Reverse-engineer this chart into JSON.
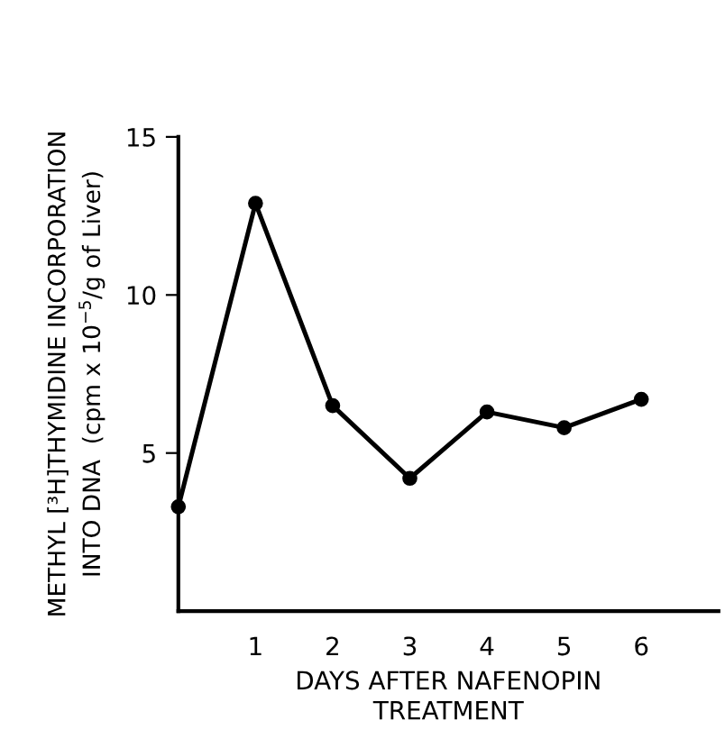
{
  "chart_data": {
    "type": "line",
    "xlabel": "DAYS AFTER NAFENOPIN\nTREATMENT",
    "ylabel": "METHYL [³H]THYMIDINE INCORPORATION\nINTO DNA  (cpm x 10$^{−5}$/g of Liver)",
    "x": [
      0,
      1,
      2,
      3,
      4,
      5,
      6
    ],
    "series": [
      {
        "color": "#000000",
        "values": [
          3.3,
          12.9,
          6.5,
          4.2,
          6.3,
          5.8,
          6.7
        ]
      }
    ],
    "xlim": [
      0,
      7
    ],
    "ylim": [
      0,
      15
    ],
    "xticks": [
      1,
      2,
      3,
      4,
      5,
      6
    ],
    "yticks": [
      5,
      10,
      15
    ],
    "grid": false,
    "marker": "circle",
    "line_style": "solid"
  }
}
